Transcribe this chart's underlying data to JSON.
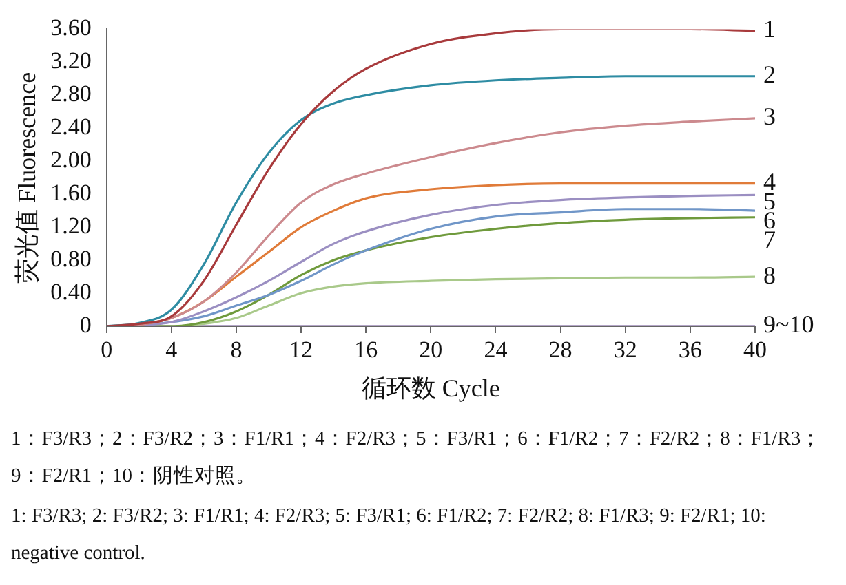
{
  "chart_data": {
    "type": "line",
    "xlabel": "循环数 Cycle",
    "ylabel": "荧光值 Fluorescence",
    "x": [
      0,
      2,
      4,
      6,
      8,
      10,
      12,
      14,
      16,
      20,
      24,
      28,
      32,
      36,
      40
    ],
    "xlim": [
      0,
      40
    ],
    "xticks": [
      0,
      4,
      8,
      12,
      16,
      20,
      24,
      28,
      32,
      36,
      40
    ],
    "ylim": [
      0,
      3.6
    ],
    "yticks": [
      0,
      {
        "value": 0.4,
        "label": "0.40"
      },
      {
        "value": 0.8,
        "label": "0.80"
      },
      {
        "value": 1.2,
        "label": "1.20"
      },
      {
        "value": 1.6,
        "label": "1.60"
      },
      {
        "value": 2.0,
        "label": "2.00"
      },
      {
        "value": 2.4,
        "label": "2.40"
      },
      {
        "value": 2.8,
        "label": "2.80"
      },
      {
        "value": 3.2,
        "label": "3.20"
      },
      {
        "value": 3.6,
        "label": "3.60"
      }
    ],
    "grid": false,
    "legend": false,
    "marker": "none",
    "line_style": "solid",
    "series": [
      {
        "name": "1",
        "color": "#a83a3c",
        "values": [
          0,
          0.03,
          0.12,
          0.55,
          1.23,
          1.9,
          2.45,
          2.85,
          3.12,
          3.42,
          3.55,
          3.6,
          3.6,
          3.6,
          3.58
        ]
      },
      {
        "name": "2",
        "color": "#2e8ca3",
        "values": [
          0,
          0.04,
          0.2,
          0.75,
          1.5,
          2.1,
          2.5,
          2.7,
          2.8,
          2.92,
          2.98,
          3.01,
          3.03,
          3.03,
          3.03
        ]
      },
      {
        "name": "3",
        "color": "#cc8a8e",
        "values": [
          0,
          0.02,
          0.1,
          0.3,
          0.65,
          1.1,
          1.5,
          1.72,
          1.85,
          2.05,
          2.22,
          2.35,
          2.43,
          2.48,
          2.52
        ]
      },
      {
        "name": "4",
        "color": "#e07b39",
        "values": [
          0,
          0.02,
          0.1,
          0.3,
          0.6,
          0.9,
          1.2,
          1.4,
          1.55,
          1.66,
          1.71,
          1.73,
          1.73,
          1.73,
          1.73
        ]
      },
      {
        "name": "5",
        "color": "#9b8fc2",
        "values": [
          0,
          0.01,
          0.05,
          0.18,
          0.35,
          0.55,
          0.78,
          1.0,
          1.15,
          1.35,
          1.47,
          1.53,
          1.56,
          1.58,
          1.59
        ]
      },
      {
        "name": "6",
        "color": "#7096c8",
        "values": [
          0,
          0.01,
          0.05,
          0.12,
          0.25,
          0.38,
          0.55,
          0.75,
          0.92,
          1.18,
          1.33,
          1.38,
          1.42,
          1.42,
          1.4
        ]
      },
      {
        "name": "7",
        "color": "#6f9a3c",
        "values": [
          0,
          0,
          0,
          0.05,
          0.18,
          0.38,
          0.62,
          0.8,
          0.92,
          1.08,
          1.18,
          1.25,
          1.29,
          1.31,
          1.32
        ]
      },
      {
        "name": "8",
        "color": "#a9c98a",
        "values": [
          0,
          0,
          0,
          0.03,
          0.1,
          0.25,
          0.4,
          0.48,
          0.52,
          0.55,
          0.57,
          0.58,
          0.59,
          0.59,
          0.6
        ]
      },
      {
        "name": "9~10",
        "color": "#6b4f8f",
        "values": [
          0,
          0,
          0,
          0,
          0,
          0,
          0,
          0,
          0,
          0,
          0,
          0,
          0,
          0,
          0
        ]
      }
    ],
    "annotations": [
      "1：F3/R3；2：F3/R2；3：F1/R1；4：F2/R3；5：F3/R1；6：F1/R2；7：F2/R2；8：F1/R3；9：F2/R1；10：阴性对照。",
      "1: F3/R3; 2: F3/R2; 3: F1/R1; 4: F2/R3; 5: F3/R1; 6: F1/R2; 7: F2/R2; 8: F1/R3; 9: F2/R1; 10: negative control."
    ]
  }
}
